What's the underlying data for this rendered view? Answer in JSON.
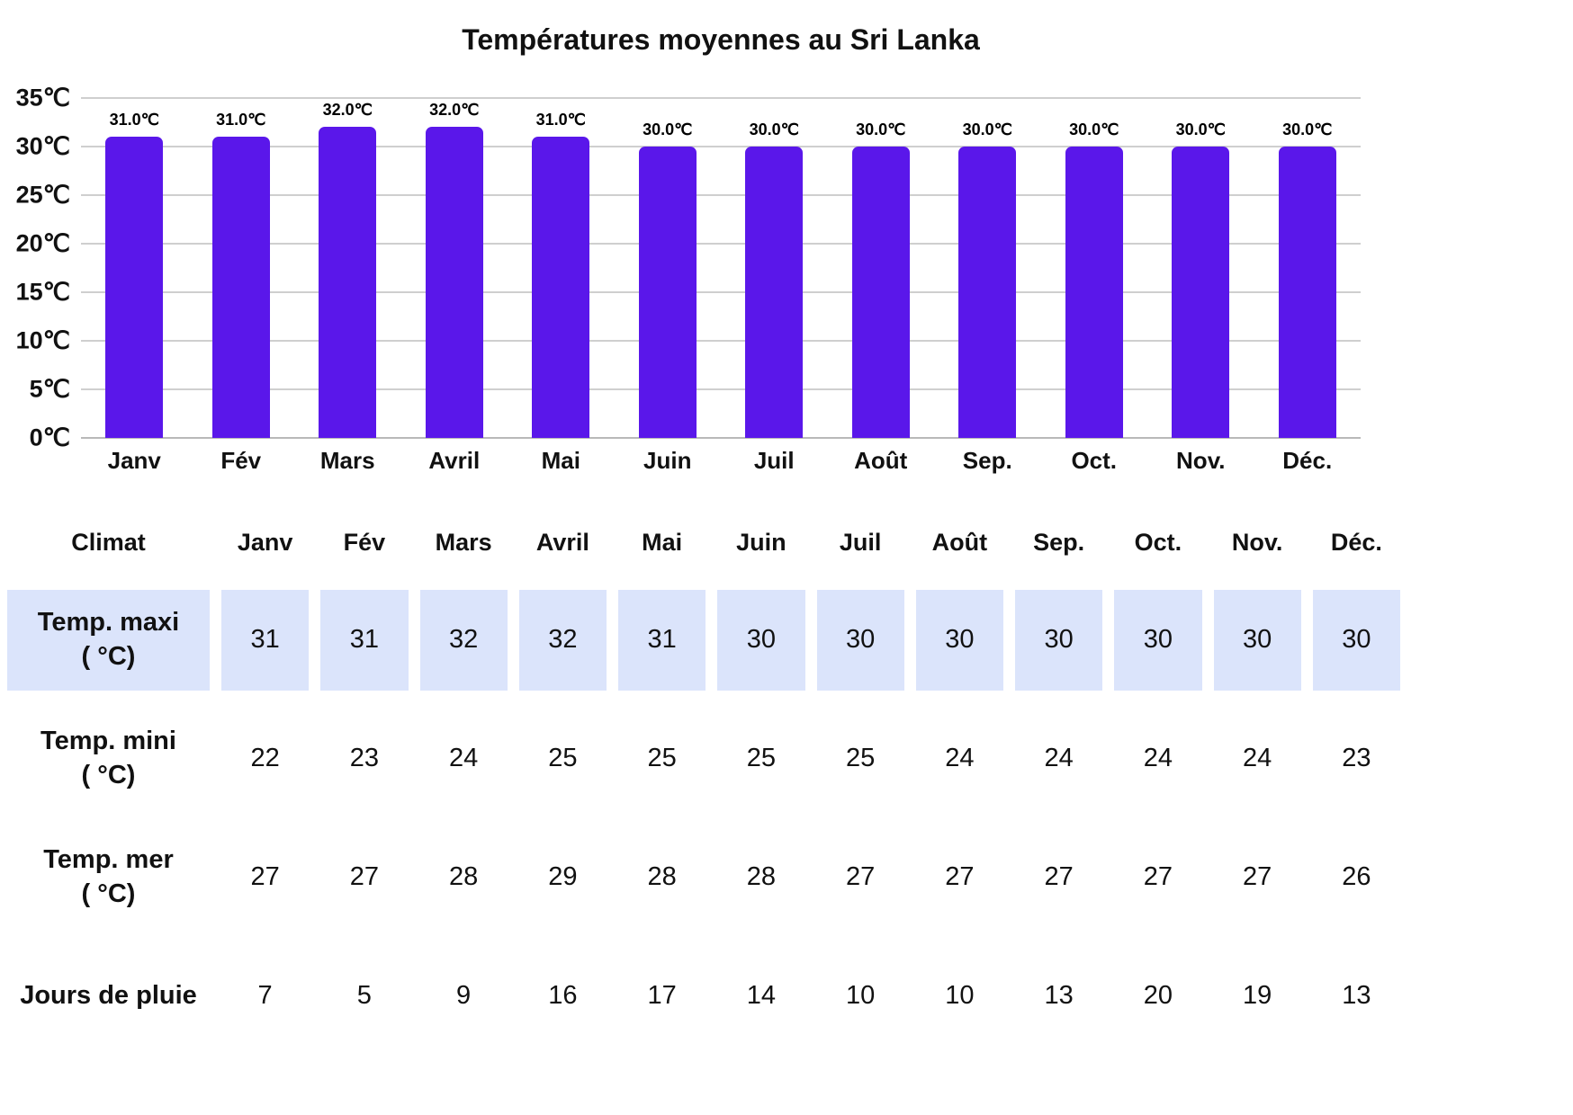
{
  "colors": {
    "bar": "#5a17ea",
    "row_highlight": "#dbe4fb",
    "gridline": "#cfcfcf",
    "baseline": "#b9b9b9",
    "text": "#111111"
  },
  "chart_data": {
    "type": "bar",
    "title": "Températures moyennes au Sri Lanka",
    "categories": [
      "Janv",
      "Fév",
      "Mars",
      "Avril",
      "Mai",
      "Juin",
      "Juil",
      "Août",
      "Sep.",
      "Oct.",
      "Nov.",
      "Déc."
    ],
    "values": [
      31,
      31,
      32,
      32,
      31,
      30,
      30,
      30,
      30,
      30,
      30,
      30
    ],
    "bar_labels": [
      "31.0℃",
      "31.0℃",
      "32.0℃",
      "32.0℃",
      "31.0℃",
      "30.0℃",
      "30.0℃",
      "30.0℃",
      "30.0℃",
      "30.0℃",
      "30.0℃",
      "30.0℃"
    ],
    "xlabel": "",
    "ylabel": "",
    "ylim": [
      0,
      35
    ],
    "ytick_step": 5,
    "ytick_labels": [
      "0℃",
      "5℃",
      "10℃",
      "15℃",
      "20℃",
      "25℃",
      "30℃",
      "35℃"
    ],
    "grid": true,
    "legend": false
  },
  "table": {
    "corner_label": "Climat",
    "columns": [
      "Janv",
      "Fév",
      "Mars",
      "Avril",
      "Mai",
      "Juin",
      "Juil",
      "Août",
      "Sep.",
      "Oct.",
      "Nov.",
      "Déc."
    ],
    "rows": [
      {
        "label_line1": "Temp. maxi",
        "label_line2": "( °C)",
        "highlight": true,
        "values": [
          31,
          31,
          32,
          32,
          31,
          30,
          30,
          30,
          30,
          30,
          30,
          30
        ]
      },
      {
        "label_line1": "Temp. mini",
        "label_line2": "( °C)",
        "highlight": false,
        "values": [
          22,
          23,
          24,
          25,
          25,
          25,
          25,
          24,
          24,
          24,
          24,
          23
        ]
      },
      {
        "label_line1": "Temp. mer",
        "label_line2": "( °C)",
        "highlight": false,
        "values": [
          27,
          27,
          28,
          29,
          28,
          28,
          27,
          27,
          27,
          27,
          27,
          26
        ]
      },
      {
        "label_line1": "Jours de pluie",
        "label_line2": "",
        "highlight": false,
        "values": [
          7,
          5,
          9,
          16,
          17,
          14,
          10,
          10,
          13,
          20,
          19,
          13
        ]
      }
    ]
  }
}
